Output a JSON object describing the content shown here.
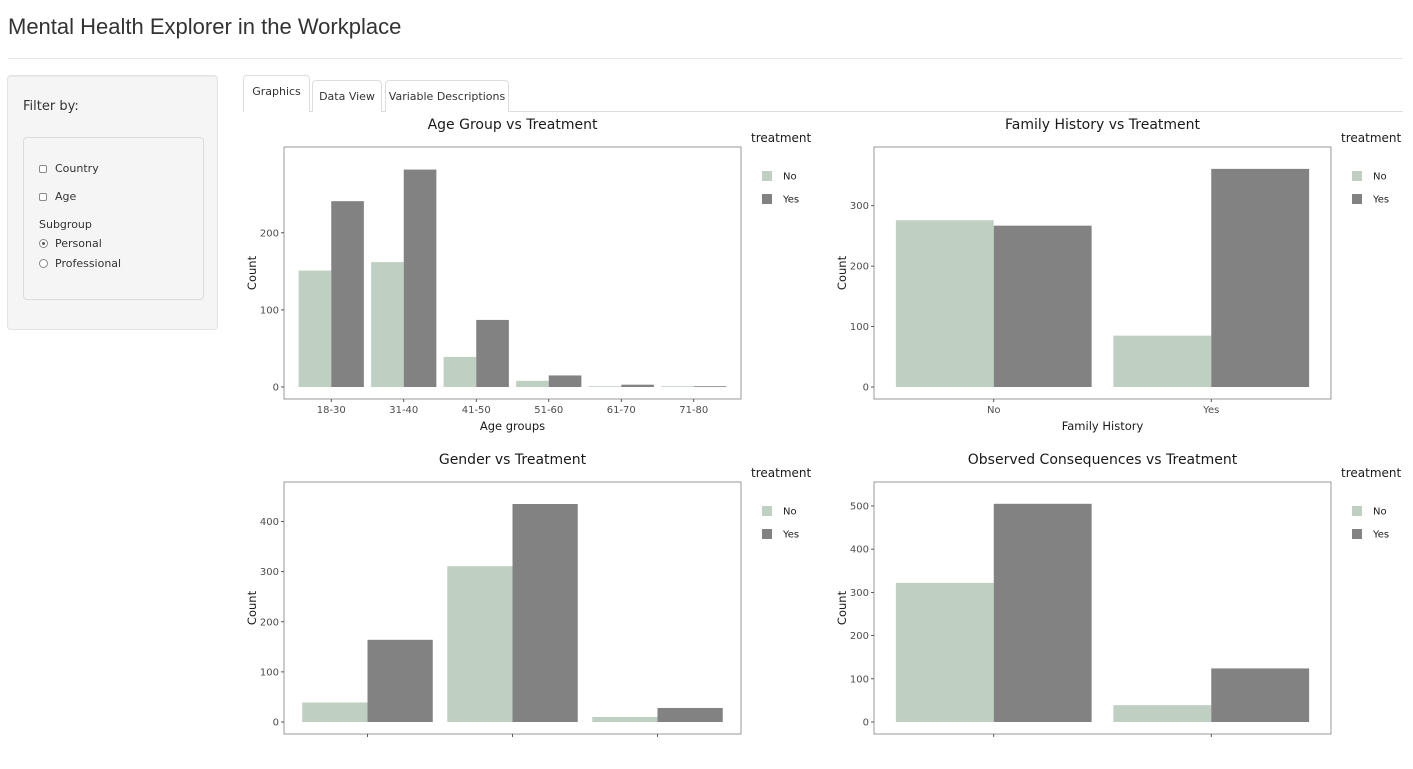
{
  "app": {
    "title": "Mental Health Explorer in the Workplace"
  },
  "sidebar": {
    "filter_label": "Filter by:",
    "options": [
      {
        "label": "Country",
        "checked": false
      },
      {
        "label": "Age",
        "checked": false
      }
    ],
    "subgroup": {
      "label": "Subgroup",
      "options": [
        {
          "label": "Personal",
          "selected": true
        },
        {
          "label": "Professional",
          "selected": false
        }
      ]
    }
  },
  "tabs": [
    {
      "label": "Graphics",
      "active": true
    },
    {
      "label": "Data View",
      "active": false
    },
    {
      "label": "Variable Descriptions",
      "active": false
    }
  ],
  "colors": {
    "no": "#bfd0c2",
    "yes": "#828282",
    "panel_border": "#7f7f7f"
  },
  "legend": {
    "title": "treatment",
    "items": [
      "No",
      "Yes"
    ]
  },
  "chart_data": [
    {
      "type": "bar",
      "title": "Age Group vs Treatment",
      "xlabel": "Age groups",
      "ylabel": "Count",
      "categories": [
        "18-30",
        "31-40",
        "41-50",
        "51-60",
        "61-70",
        "71-80"
      ],
      "series": [
        {
          "name": "No",
          "values": [
            151,
            162,
            39,
            8,
            1,
            1
          ]
        },
        {
          "name": "Yes",
          "values": [
            241,
            282,
            87,
            15,
            3,
            1
          ]
        }
      ],
      "yticks": [
        0,
        100,
        200
      ],
      "ylim": [
        0,
        297
      ],
      "legend_title": "treatment"
    },
    {
      "type": "bar",
      "title": "Family History vs Treatment",
      "xlabel": "Family History",
      "ylabel": "Count",
      "categories": [
        "No",
        "Yes"
      ],
      "series": [
        {
          "name": "No",
          "values": [
            276,
            85
          ]
        },
        {
          "name": "Yes",
          "values": [
            267,
            361
          ]
        }
      ],
      "yticks": [
        0,
        100,
        200,
        300
      ],
      "ylim": [
        0,
        379
      ],
      "legend_title": "treatment"
    },
    {
      "type": "bar",
      "title": "Gender vs Treatment",
      "xlabel": "",
      "ylabel": "Count",
      "categories": [
        "",
        "",
        ""
      ],
      "series": [
        {
          "name": "No",
          "values": [
            39,
            311,
            10
          ]
        },
        {
          "name": "Yes",
          "values": [
            164,
            435,
            28
          ]
        }
      ],
      "yticks": [
        0,
        100,
        200,
        300,
        400
      ],
      "ylim": [
        0,
        457
      ],
      "legend_title": "treatment"
    },
    {
      "type": "bar",
      "title": "Observed Consequences vs Treatment",
      "xlabel": "",
      "ylabel": "Count",
      "categories": [
        "",
        ""
      ],
      "series": [
        {
          "name": "No",
          "values": [
            322,
            39
          ]
        },
        {
          "name": "Yes",
          "values": [
            505,
            124
          ]
        }
      ],
      "yticks": [
        0,
        100,
        200,
        300,
        400,
        500
      ],
      "ylim": [
        0,
        530
      ],
      "legend_title": "treatment"
    }
  ]
}
